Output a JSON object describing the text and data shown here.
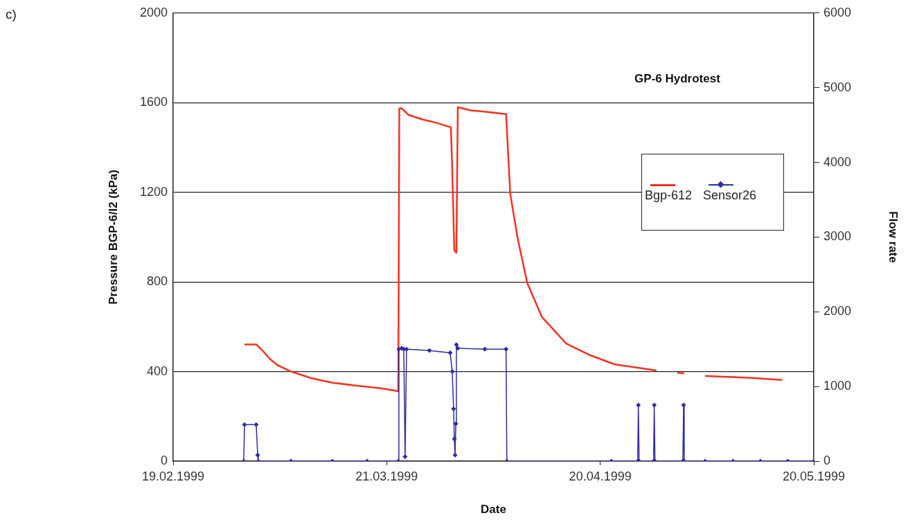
{
  "chart_data": {
    "type": "line",
    "title": "GP-6 Hydrotest",
    "xlabel": "Date",
    "ylabel": "Pressure BGP-6/I2 (kPa)",
    "y2label": "Flow rate",
    "annotations": [
      "c)"
    ],
    "xlim": [
      "1999-02-19",
      "1999-05-20"
    ],
    "xticks": [
      {
        "value": "1999-02-19",
        "label": "19.02.1999"
      },
      {
        "value": "1999-03-21",
        "label": "21.03.1999"
      },
      {
        "value": "1999-04-20",
        "label": "20.04.1999"
      },
      {
        "value": "1999-05-20",
        "label": "20.05.1999"
      }
    ],
    "ylim": [
      0,
      2000
    ],
    "yticks": [
      0,
      400,
      800,
      1200,
      1600,
      2000
    ],
    "y2lim": [
      0,
      6000
    ],
    "y2ticks": [
      0,
      1000,
      2000,
      3000,
      4000,
      5000,
      6000
    ],
    "grid": "y",
    "legend": "right",
    "line_style": "solid",
    "series": [
      {
        "name": "Bgp-612",
        "color": "#f5301e",
        "marker": "none",
        "x": [
          "1999-03-01T00:30",
          "1999-03-02T16:00",
          "1999-03-03T15:30",
          "1999-03-04T15:00",
          "1999-03-05T14:00",
          "1999-03-07T13:00",
          "1999-03-10T11:00",
          "1999-03-13T09:00",
          "1999-03-17T06:30",
          "1999-03-20T04:30",
          "1999-03-22T15:00",
          "1999-03-22T18:30",
          "1999-03-23T02:30",
          "1999-03-24T02:00",
          "1999-03-26T00:45",
          "1999-03-27T23:30",
          "1999-03-30T00:30",
          "1999-03-30T05:00",
          "1999-03-30T12:00",
          "1999-03-30T19:00",
          "1999-03-30T23:45",
          "1999-04-01T20:00",
          "1999-04-03T18:00",
          "1999-04-06T18:30",
          "1999-04-07T08:30",
          "1999-04-08T09:00",
          "1999-04-09T18:00",
          "1999-04-11T19:00",
          "1999-04-15T05:00",
          "1999-04-18T15:00",
          "1999-04-22T01:00",
          "1999-04-27T21:30",
          "1999-04-28T20:30",
          "1999-04-30T20:00",
          "1999-05-01T19:00",
          "1999-05-02T23:00",
          "1999-05-04T17:30",
          "1999-05-10T18:00",
          "1999-05-15T13:45"
        ],
        "values": [
          521,
          521,
          490,
          455,
          430,
          400,
          370,
          350,
          335,
          325,
          312,
          1574,
          1575,
          1545,
          1525,
          1510,
          1490,
          1300,
          940,
          930,
          1580,
          1565,
          1560,
          1549,
          1193,
          998,
          794,
          644,
          525,
          472,
          432,
          405,
          null,
          395,
          392,
          null,
          380,
          372,
          362
        ]
      },
      {
        "name": "Sensor26",
        "color": "#2e2e9a",
        "marker": "diamond",
        "axis": "y2",
        "x": [
          "1999-02-28T22:00",
          "1999-03-01T00:30",
          "1999-03-02T16:00",
          "1999-03-02T21:00",
          "1999-03-02T23:00",
          "1999-03-07T13:00",
          "1999-03-13T09:00",
          "1999-03-18T06:00",
          "1999-03-22T15:00",
          "1999-03-22T17:00",
          "1999-03-23T02:30",
          "1999-03-23T09:30",
          "1999-03-23T14:00",
          "1999-03-23T19:00",
          "1999-03-27T00:00",
          "1999-03-29T22:00",
          "1999-03-30T05:00",
          "1999-03-30T09:30",
          "1999-03-30T12:00",
          "1999-03-30T14:30",
          "1999-03-30T17:00",
          "1999-03-30T19:00",
          "1999-03-30T23:45",
          "1999-04-03T18:45",
          "1999-04-06T18:30",
          "1999-04-06T21:00",
          "1999-04-21T13:30",
          "1999-04-25T06:15",
          "1999-04-25T08:30",
          "1999-04-25T11:00",
          "1999-04-27T12:00",
          "1999-04-27T14:00",
          "1999-04-27T16:30",
          "1999-05-01T14:30",
          "1999-05-01T17:00",
          "1999-05-01T19:00",
          "1999-05-04T17:30",
          "1999-05-08T16:00",
          "1999-05-12T12:00",
          "1999-05-16T08:00",
          "1999-05-20T00:00"
        ],
        "values": [
          0,
          490,
          490,
          80,
          0,
          0,
          0,
          0,
          0,
          1500,
          1510,
          1500,
          60,
          1500,
          1480,
          1450,
          1200,
          700,
          300,
          80,
          500,
          1560,
          1510,
          1500,
          1500,
          0,
          0,
          0,
          750,
          0,
          0,
          750,
          0,
          0,
          750,
          0,
          0,
          0,
          0,
          0,
          0
        ]
      }
    ]
  }
}
